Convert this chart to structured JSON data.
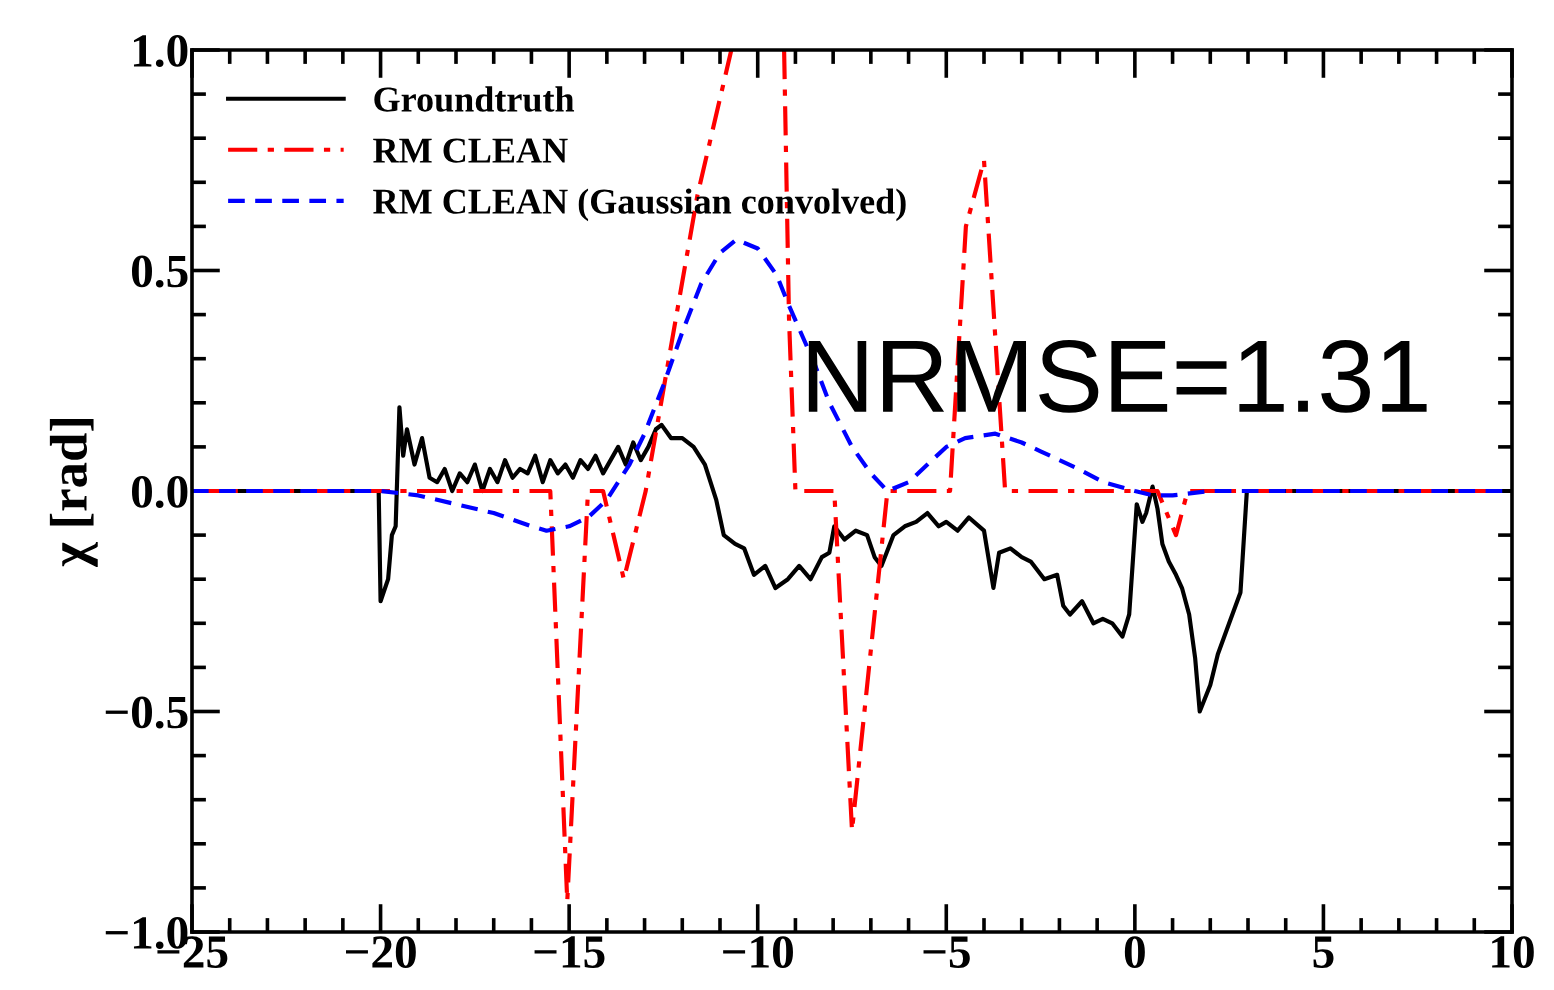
{
  "chart_data": {
    "type": "line",
    "ylabel": "χ [rad]",
    "xlim": [
      -25,
      10
    ],
    "ylim": [
      -1.0,
      1.0
    ],
    "xticks": [
      -25,
      -20,
      -15,
      -10,
      -5,
      0,
      5,
      10
    ],
    "yticks": [
      {
        "value": -1.0,
        "label": "−1.0"
      },
      {
        "value": -0.5,
        "label": "−0.5"
      },
      {
        "value": 0.0,
        "label": "0.0"
      },
      {
        "value": 0.5,
        "label": "0.5"
      },
      {
        "value": 1.0,
        "label": "1.0"
      }
    ],
    "grid": false,
    "legend": "top left",
    "annotations": [
      "NRMSE=1.31"
    ],
    "series": [
      {
        "name": "Groundtruth",
        "color": "#000000",
        "line_style": "solid",
        "x": [
          -25,
          -20.05,
          -20.0,
          -19.8,
          -19.7,
          -19.6,
          -19.5,
          -19.4,
          -19.3,
          -19.1,
          -18.9,
          -18.7,
          -18.5,
          -18.3,
          -18.1,
          -17.9,
          -17.7,
          -17.5,
          -17.3,
          -17.1,
          -16.9,
          -16.7,
          -16.5,
          -16.3,
          -16.1,
          -15.9,
          -15.7,
          -15.5,
          -15.3,
          -15.1,
          -14.9,
          -14.7,
          -14.5,
          -14.3,
          -14.1,
          -13.9,
          -13.7,
          -13.5,
          -13.3,
          -13.1,
          -12.9,
          -12.7,
          -12.55,
          -12.3,
          -12.0,
          -11.7,
          -11.4,
          -11.1,
          -10.9,
          -10.6,
          -10.36,
          -10.1,
          -9.8,
          -9.53,
          -9.2,
          -8.9,
          -8.6,
          -8.3,
          -8.1,
          -7.97,
          -7.7,
          -7.4,
          -7.1,
          -6.9,
          -6.72,
          -6.4,
          -6.1,
          -5.8,
          -5.5,
          -5.2,
          -5.0,
          -4.7,
          -4.4,
          -4.0,
          -3.75,
          -3.6,
          -3.3,
          -3.0,
          -2.76,
          -2.4,
          -2.06,
          -1.9,
          -1.72,
          -1.4,
          -1.1,
          -0.85,
          -0.6,
          -0.33,
          -0.15,
          0.05,
          0.2,
          0.3,
          0.47,
          0.6,
          0.73,
          0.9,
          1.09,
          1.25,
          1.44,
          1.6,
          1.72,
          2.0,
          2.2,
          2.5,
          2.8,
          2.97,
          10
        ],
        "values": [
          0,
          0,
          -0.25,
          -0.2,
          -0.1,
          -0.08,
          0.19,
          0.08,
          0.14,
          0.06,
          0.12,
          0.03,
          0.02,
          0.05,
          0.0,
          0.04,
          0.02,
          0.06,
          0.0,
          0.05,
          0.02,
          0.07,
          0.03,
          0.05,
          0.04,
          0.08,
          0.02,
          0.07,
          0.04,
          0.06,
          0.03,
          0.07,
          0.05,
          0.08,
          0.04,
          0.07,
          0.1,
          0.06,
          0.11,
          0.07,
          0.1,
          0.14,
          0.15,
          0.12,
          0.12,
          0.1,
          0.06,
          -0.02,
          -0.1,
          -0.12,
          -0.13,
          -0.19,
          -0.17,
          -0.22,
          -0.2,
          -0.17,
          -0.2,
          -0.15,
          -0.14,
          -0.08,
          -0.11,
          -0.09,
          -0.1,
          -0.15,
          -0.17,
          -0.1,
          -0.08,
          -0.07,
          -0.05,
          -0.08,
          -0.07,
          -0.09,
          -0.06,
          -0.09,
          -0.22,
          -0.14,
          -0.13,
          -0.15,
          -0.16,
          -0.2,
          -0.19,
          -0.26,
          -0.28,
          -0.25,
          -0.3,
          -0.29,
          -0.3,
          -0.33,
          -0.28,
          -0.03,
          -0.07,
          -0.05,
          0.01,
          -0.04,
          -0.12,
          -0.16,
          -0.19,
          -0.22,
          -0.28,
          -0.38,
          -0.5,
          -0.44,
          -0.37,
          -0.3,
          -0.23,
          0.0,
          0.0
        ]
      },
      {
        "name": "RM CLEAN",
        "color": "#ff0000",
        "line_style": "dashdot",
        "x": [
          -25,
          -15.5,
          -15.05,
          -14.5,
          -14.1,
          -13.55,
          -12.97,
          -11.6,
          -10.7,
          -10.0,
          -9.3,
          -9.17,
          -9.0,
          -7.97,
          -7.5,
          -6.56,
          -4.9,
          -4.48,
          -4.0,
          -3.44,
          0.6,
          1.09,
          1.4,
          10
        ],
        "values": [
          0,
          0,
          -0.93,
          0,
          0,
          -0.2,
          0,
          0.67,
          1.0,
          null,
          1.0,
          0.39,
          0,
          0,
          -0.77,
          0,
          0,
          0.6,
          0.75,
          0,
          0,
          -0.1,
          0,
          0
        ]
      },
      {
        "name": "RM CLEAN (Gaussian convolved)",
        "color": "#0000ff",
        "line_style": "dashed",
        "x": [
          -25,
          -20,
          -19,
          -18,
          -17,
          -16,
          -15.6,
          -15,
          -14.5,
          -14,
          -13.4,
          -13,
          -12.5,
          -12,
          -11.5,
          -11,
          -10.57,
          -10,
          -9.5,
          -9.17,
          -8.5,
          -8.1,
          -7.5,
          -7,
          -6.56,
          -6,
          -5.5,
          -5,
          -4.5,
          -3.7,
          -3,
          -2.5,
          -2,
          -1.5,
          -0.83,
          0,
          0.5,
          1,
          2,
          10
        ],
        "values": [
          0,
          0,
          -0.01,
          -0.03,
          -0.05,
          -0.08,
          -0.09,
          -0.08,
          -0.06,
          -0.02,
          0.06,
          0.13,
          0.24,
          0.36,
          0.47,
          0.54,
          0.57,
          0.55,
          0.49,
          0.42,
          0.29,
          0.2,
          0.1,
          0.04,
          0.0,
          0.02,
          0.06,
          0.1,
          0.12,
          0.13,
          0.11,
          0.09,
          0.07,
          0.05,
          0.02,
          0.0,
          -0.01,
          -0.01,
          0,
          0
        ]
      }
    ]
  }
}
